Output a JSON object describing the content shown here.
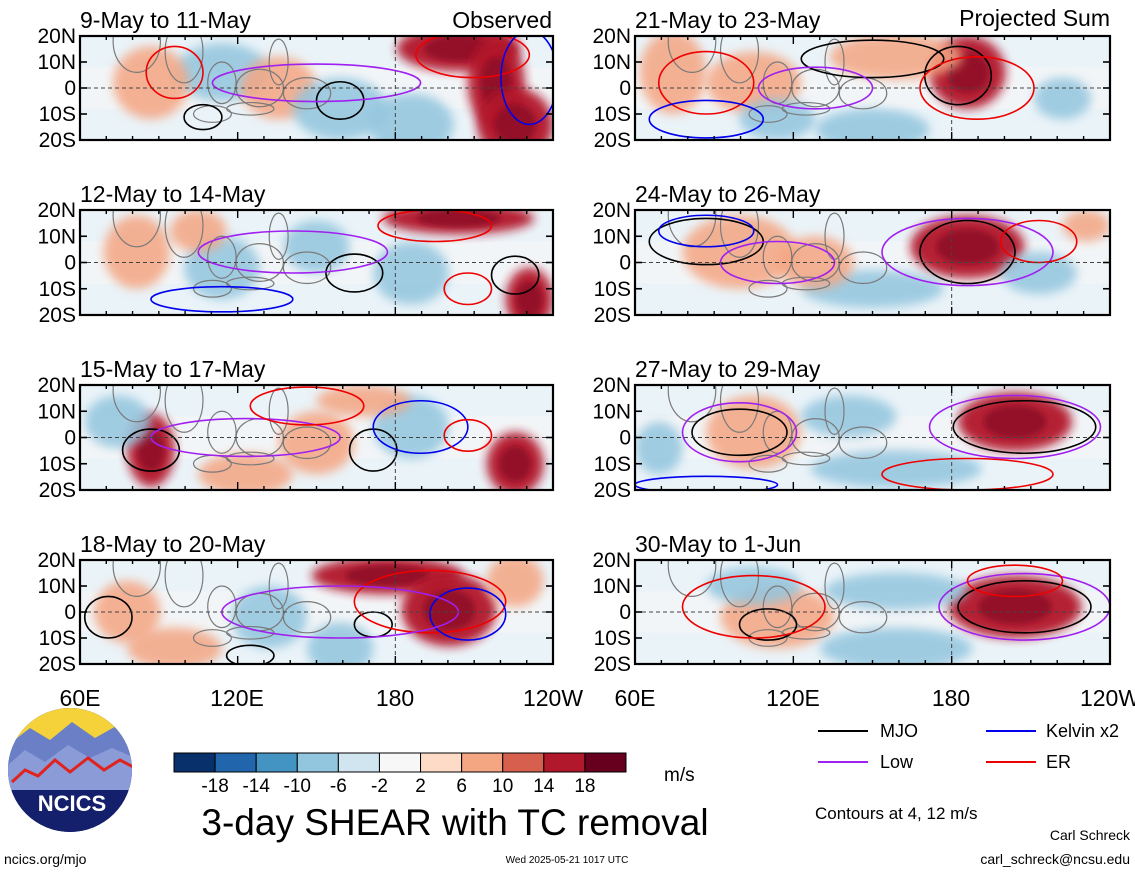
{
  "chart_data": {
    "type": "heatmap",
    "title": "3-day SHEAR with TC removal",
    "colorbar": {
      "unit": "m/s",
      "ticks": [
        "-18",
        "-14",
        "-10",
        "-6",
        "-2",
        "2",
        "6",
        "10",
        "14",
        "18"
      ],
      "colors": [
        "#08306b",
        "#2166ac",
        "#4393c3",
        "#92c5de",
        "#d1e5f0",
        "#f7f7f7",
        "#fddbc7",
        "#f4a582",
        "#d6604d",
        "#b2182b",
        "#67001f"
      ]
    },
    "lat_labels": [
      "20N",
      "10N",
      "0",
      "10S",
      "20S"
    ],
    "lon_labels": [
      "60E",
      "120E",
      "180",
      "120W"
    ],
    "contour_note": "Contours at 4, 12 m/s",
    "legend": [
      {
        "label": "MJO",
        "color": "#000000"
      },
      {
        "label": "Kelvin x2",
        "color": "#0000ee"
      },
      {
        "label": "Low",
        "color": "#a020f0"
      },
      {
        "label": "ER",
        "color": "#ee0000"
      }
    ],
    "observed_label": "Observed",
    "projected_label": "Projected Sum",
    "panels": [
      {
        "title": "9-May to 11-May",
        "blobs": [
          [
            0.3,
            0.35,
            0.1,
            0.28,
            "b"
          ],
          [
            0.42,
            0.5,
            0.08,
            0.3,
            "r"
          ],
          [
            0.8,
            0.12,
            0.13,
            0.22,
            "R"
          ],
          [
            0.88,
            0.45,
            0.06,
            0.45,
            "R"
          ],
          [
            0.92,
            0.85,
            0.08,
            0.35,
            "R"
          ],
          [
            0.55,
            0.7,
            0.1,
            0.3,
            "b"
          ],
          [
            0.15,
            0.45,
            0.08,
            0.35,
            "r"
          ],
          [
            0.7,
            0.85,
            0.09,
            0.3,
            "b"
          ]
        ],
        "contours": [
          [
            "k",
            0.55,
            0.62,
            0.05,
            0.18
          ],
          [
            "r",
            0.83,
            0.18,
            0.12,
            0.22
          ],
          [
            "p",
            0.5,
            0.45,
            0.22,
            0.18
          ],
          [
            "b",
            0.95,
            0.4,
            0.06,
            0.45
          ],
          [
            "r",
            0.2,
            0.35,
            0.06,
            0.25
          ],
          [
            "k",
            0.26,
            0.78,
            0.04,
            0.12
          ]
        ]
      },
      {
        "title": "12-May to 14-May",
        "blobs": [
          [
            0.12,
            0.4,
            0.07,
            0.35,
            "r"
          ],
          [
            0.3,
            0.55,
            0.08,
            0.3,
            "b"
          ],
          [
            0.5,
            0.35,
            0.07,
            0.25,
            "b"
          ],
          [
            0.8,
            0.08,
            0.16,
            0.15,
            "R"
          ],
          [
            0.95,
            0.85,
            0.05,
            0.3,
            "R"
          ],
          [
            0.7,
            0.6,
            0.08,
            0.3,
            "b"
          ],
          [
            0.25,
            0.2,
            0.06,
            0.2,
            "r"
          ]
        ],
        "contours": [
          [
            "k",
            0.58,
            0.6,
            0.06,
            0.18
          ],
          [
            "k",
            0.92,
            0.62,
            0.05,
            0.18
          ],
          [
            "p",
            0.45,
            0.4,
            0.2,
            0.2
          ],
          [
            "r",
            0.75,
            0.15,
            0.12,
            0.15
          ],
          [
            "b",
            0.3,
            0.85,
            0.15,
            0.12
          ],
          [
            "r",
            0.82,
            0.75,
            0.05,
            0.15
          ]
        ]
      },
      {
        "title": "15-May to 17-May",
        "blobs": [
          [
            0.15,
            0.62,
            0.05,
            0.35,
            "R"
          ],
          [
            0.5,
            0.55,
            0.08,
            0.3,
            "r"
          ],
          [
            0.92,
            0.75,
            0.06,
            0.3,
            "R"
          ],
          [
            0.35,
            0.85,
            0.1,
            0.2,
            "r"
          ],
          [
            0.7,
            0.4,
            0.08,
            0.3,
            "b"
          ],
          [
            0.08,
            0.35,
            0.07,
            0.25,
            "b"
          ],
          [
            0.6,
            0.15,
            0.1,
            0.15,
            "r"
          ]
        ],
        "contours": [
          [
            "k",
            0.15,
            0.62,
            0.06,
            0.2
          ],
          [
            "k",
            0.62,
            0.62,
            0.05,
            0.2
          ],
          [
            "b",
            0.72,
            0.4,
            0.1,
            0.25
          ],
          [
            "r",
            0.82,
            0.48,
            0.05,
            0.15
          ],
          [
            "p",
            0.35,
            0.5,
            0.2,
            0.18
          ],
          [
            "r",
            0.48,
            0.2,
            0.12,
            0.18
          ]
        ]
      },
      {
        "title": "18-May to 20-May",
        "blobs": [
          [
            0.65,
            0.15,
            0.16,
            0.18,
            "R"
          ],
          [
            0.78,
            0.48,
            0.1,
            0.35,
            "R"
          ],
          [
            0.4,
            0.55,
            0.08,
            0.3,
            "b"
          ],
          [
            0.1,
            0.5,
            0.07,
            0.3,
            "r"
          ],
          [
            0.2,
            0.85,
            0.1,
            0.2,
            "r"
          ],
          [
            0.92,
            0.2,
            0.06,
            0.25,
            "r"
          ],
          [
            0.55,
            0.85,
            0.07,
            0.25,
            "b"
          ]
        ],
        "contours": [
          [
            "k",
            0.06,
            0.55,
            0.05,
            0.2
          ],
          [
            "k",
            0.62,
            0.62,
            0.04,
            0.12
          ],
          [
            "r",
            0.74,
            0.4,
            0.16,
            0.3
          ],
          [
            "b",
            0.82,
            0.52,
            0.08,
            0.25
          ],
          [
            "p",
            0.55,
            0.5,
            0.25,
            0.25
          ],
          [
            "k",
            0.36,
            0.92,
            0.05,
            0.1
          ]
        ]
      },
      {
        "title": "21-May to 23-May",
        "blobs": [
          [
            0.08,
            0.35,
            0.07,
            0.4,
            "r"
          ],
          [
            0.7,
            0.35,
            0.08,
            0.35,
            "R"
          ],
          [
            0.55,
            0.2,
            0.14,
            0.22,
            "r"
          ],
          [
            0.25,
            0.45,
            0.1,
            0.3,
            "r"
          ],
          [
            0.5,
            0.9,
            0.12,
            0.2,
            "b"
          ],
          [
            0.3,
            0.8,
            0.08,
            0.2,
            "b"
          ],
          [
            0.9,
            0.6,
            0.06,
            0.2,
            "b"
          ]
        ],
        "contours": [
          [
            "k",
            0.68,
            0.38,
            0.07,
            0.28
          ],
          [
            "k",
            0.5,
            0.22,
            0.15,
            0.18
          ],
          [
            "r",
            0.15,
            0.45,
            0.1,
            0.3
          ],
          [
            "b",
            0.15,
            0.8,
            0.12,
            0.18
          ],
          [
            "r",
            0.72,
            0.5,
            0.12,
            0.3
          ],
          [
            "p",
            0.38,
            0.5,
            0.12,
            0.2
          ]
        ]
      },
      {
        "title": "24-May to 26-May",
        "blobs": [
          [
            0.7,
            0.35,
            0.12,
            0.3,
            "R"
          ],
          [
            0.22,
            0.4,
            0.12,
            0.35,
            "r"
          ],
          [
            0.5,
            0.75,
            0.15,
            0.18,
            "b"
          ],
          [
            0.95,
            0.15,
            0.05,
            0.15,
            "r"
          ],
          [
            0.85,
            0.6,
            0.08,
            0.2,
            "b"
          ],
          [
            0.38,
            0.5,
            0.08,
            0.25,
            "r"
          ]
        ],
        "contours": [
          [
            "k",
            0.7,
            0.4,
            0.1,
            0.3
          ],
          [
            "k",
            0.15,
            0.3,
            0.12,
            0.22
          ],
          [
            "p",
            0.7,
            0.4,
            0.18,
            0.32
          ],
          [
            "p",
            0.3,
            0.5,
            0.12,
            0.2
          ],
          [
            "r",
            0.85,
            0.3,
            0.08,
            0.2
          ],
          [
            "b",
            0.15,
            0.2,
            0.1,
            0.15
          ]
        ]
      },
      {
        "title": "27-May to 29-May",
        "blobs": [
          [
            0.8,
            0.35,
            0.12,
            0.28,
            "R"
          ],
          [
            0.25,
            0.45,
            0.1,
            0.35,
            "r"
          ],
          [
            0.55,
            0.8,
            0.18,
            0.18,
            "b"
          ],
          [
            0.45,
            0.3,
            0.1,
            0.2,
            "b"
          ],
          [
            0.05,
            0.6,
            0.05,
            0.25,
            "b"
          ]
        ],
        "contours": [
          [
            "k",
            0.82,
            0.4,
            0.15,
            0.25
          ],
          [
            "k",
            0.22,
            0.45,
            0.1,
            0.22
          ],
          [
            "p",
            0.8,
            0.4,
            0.18,
            0.3
          ],
          [
            "p",
            0.22,
            0.45,
            0.12,
            0.28
          ],
          [
            "r",
            0.7,
            0.85,
            0.18,
            0.15
          ],
          [
            "b",
            0.15,
            0.95,
            0.15,
            0.08
          ]
        ]
      },
      {
        "title": "30-May to 1-Jun",
        "blobs": [
          [
            0.8,
            0.45,
            0.14,
            0.3,
            "R"
          ],
          [
            0.3,
            0.55,
            0.12,
            0.3,
            "r"
          ],
          [
            0.55,
            0.3,
            0.15,
            0.18,
            "b"
          ],
          [
            0.25,
            0.25,
            0.1,
            0.18,
            "b"
          ],
          [
            0.55,
            0.85,
            0.16,
            0.2,
            "b"
          ]
        ],
        "contours": [
          [
            "k",
            0.82,
            0.45,
            0.14,
            0.25
          ],
          [
            "k",
            0.28,
            0.62,
            0.06,
            0.15
          ],
          [
            "p",
            0.82,
            0.45,
            0.18,
            0.32
          ],
          [
            "r",
            0.25,
            0.45,
            0.15,
            0.3
          ],
          [
            "r",
            0.8,
            0.2,
            0.1,
            0.15
          ]
        ]
      }
    ]
  },
  "logo": {
    "text": "NCICS"
  },
  "footer": {
    "left": "ncics.org/mjo",
    "center": "Wed 2025-05-21 1017 UTC",
    "right_name": "Carl Schreck",
    "right_email": "carl_schreck@ncsu.edu"
  }
}
